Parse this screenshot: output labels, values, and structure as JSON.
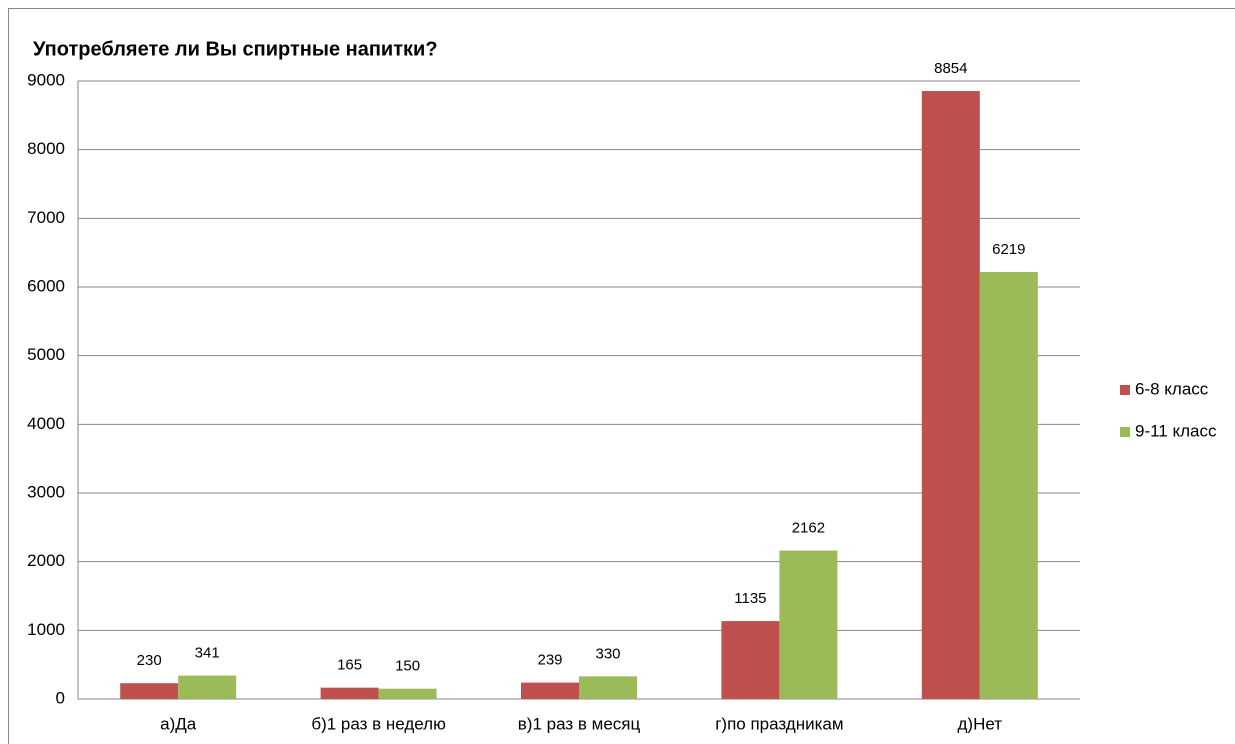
{
  "chart_data": {
    "type": "bar",
    "title": "Употребляете ли Вы спиртные напитки?",
    "categories": [
      "а)Да",
      "б)1 раз в неделю",
      "в)1 раз в месяц",
      "г)по праздникам",
      "д)Нет"
    ],
    "series": [
      {
        "name": "6-8 класс",
        "color": "#c0504d",
        "values": [
          230,
          165,
          239,
          1135,
          8854
        ]
      },
      {
        "name": "9-11 класс",
        "color": "#9bbb59",
        "values": [
          341,
          150,
          330,
          2162,
          6219
        ]
      }
    ],
    "ylim": [
      0,
      9000
    ],
    "yticks": [
      0,
      1000,
      2000,
      3000,
      4000,
      5000,
      6000,
      7000,
      8000,
      9000
    ],
    "grid": true,
    "legend": "right"
  }
}
